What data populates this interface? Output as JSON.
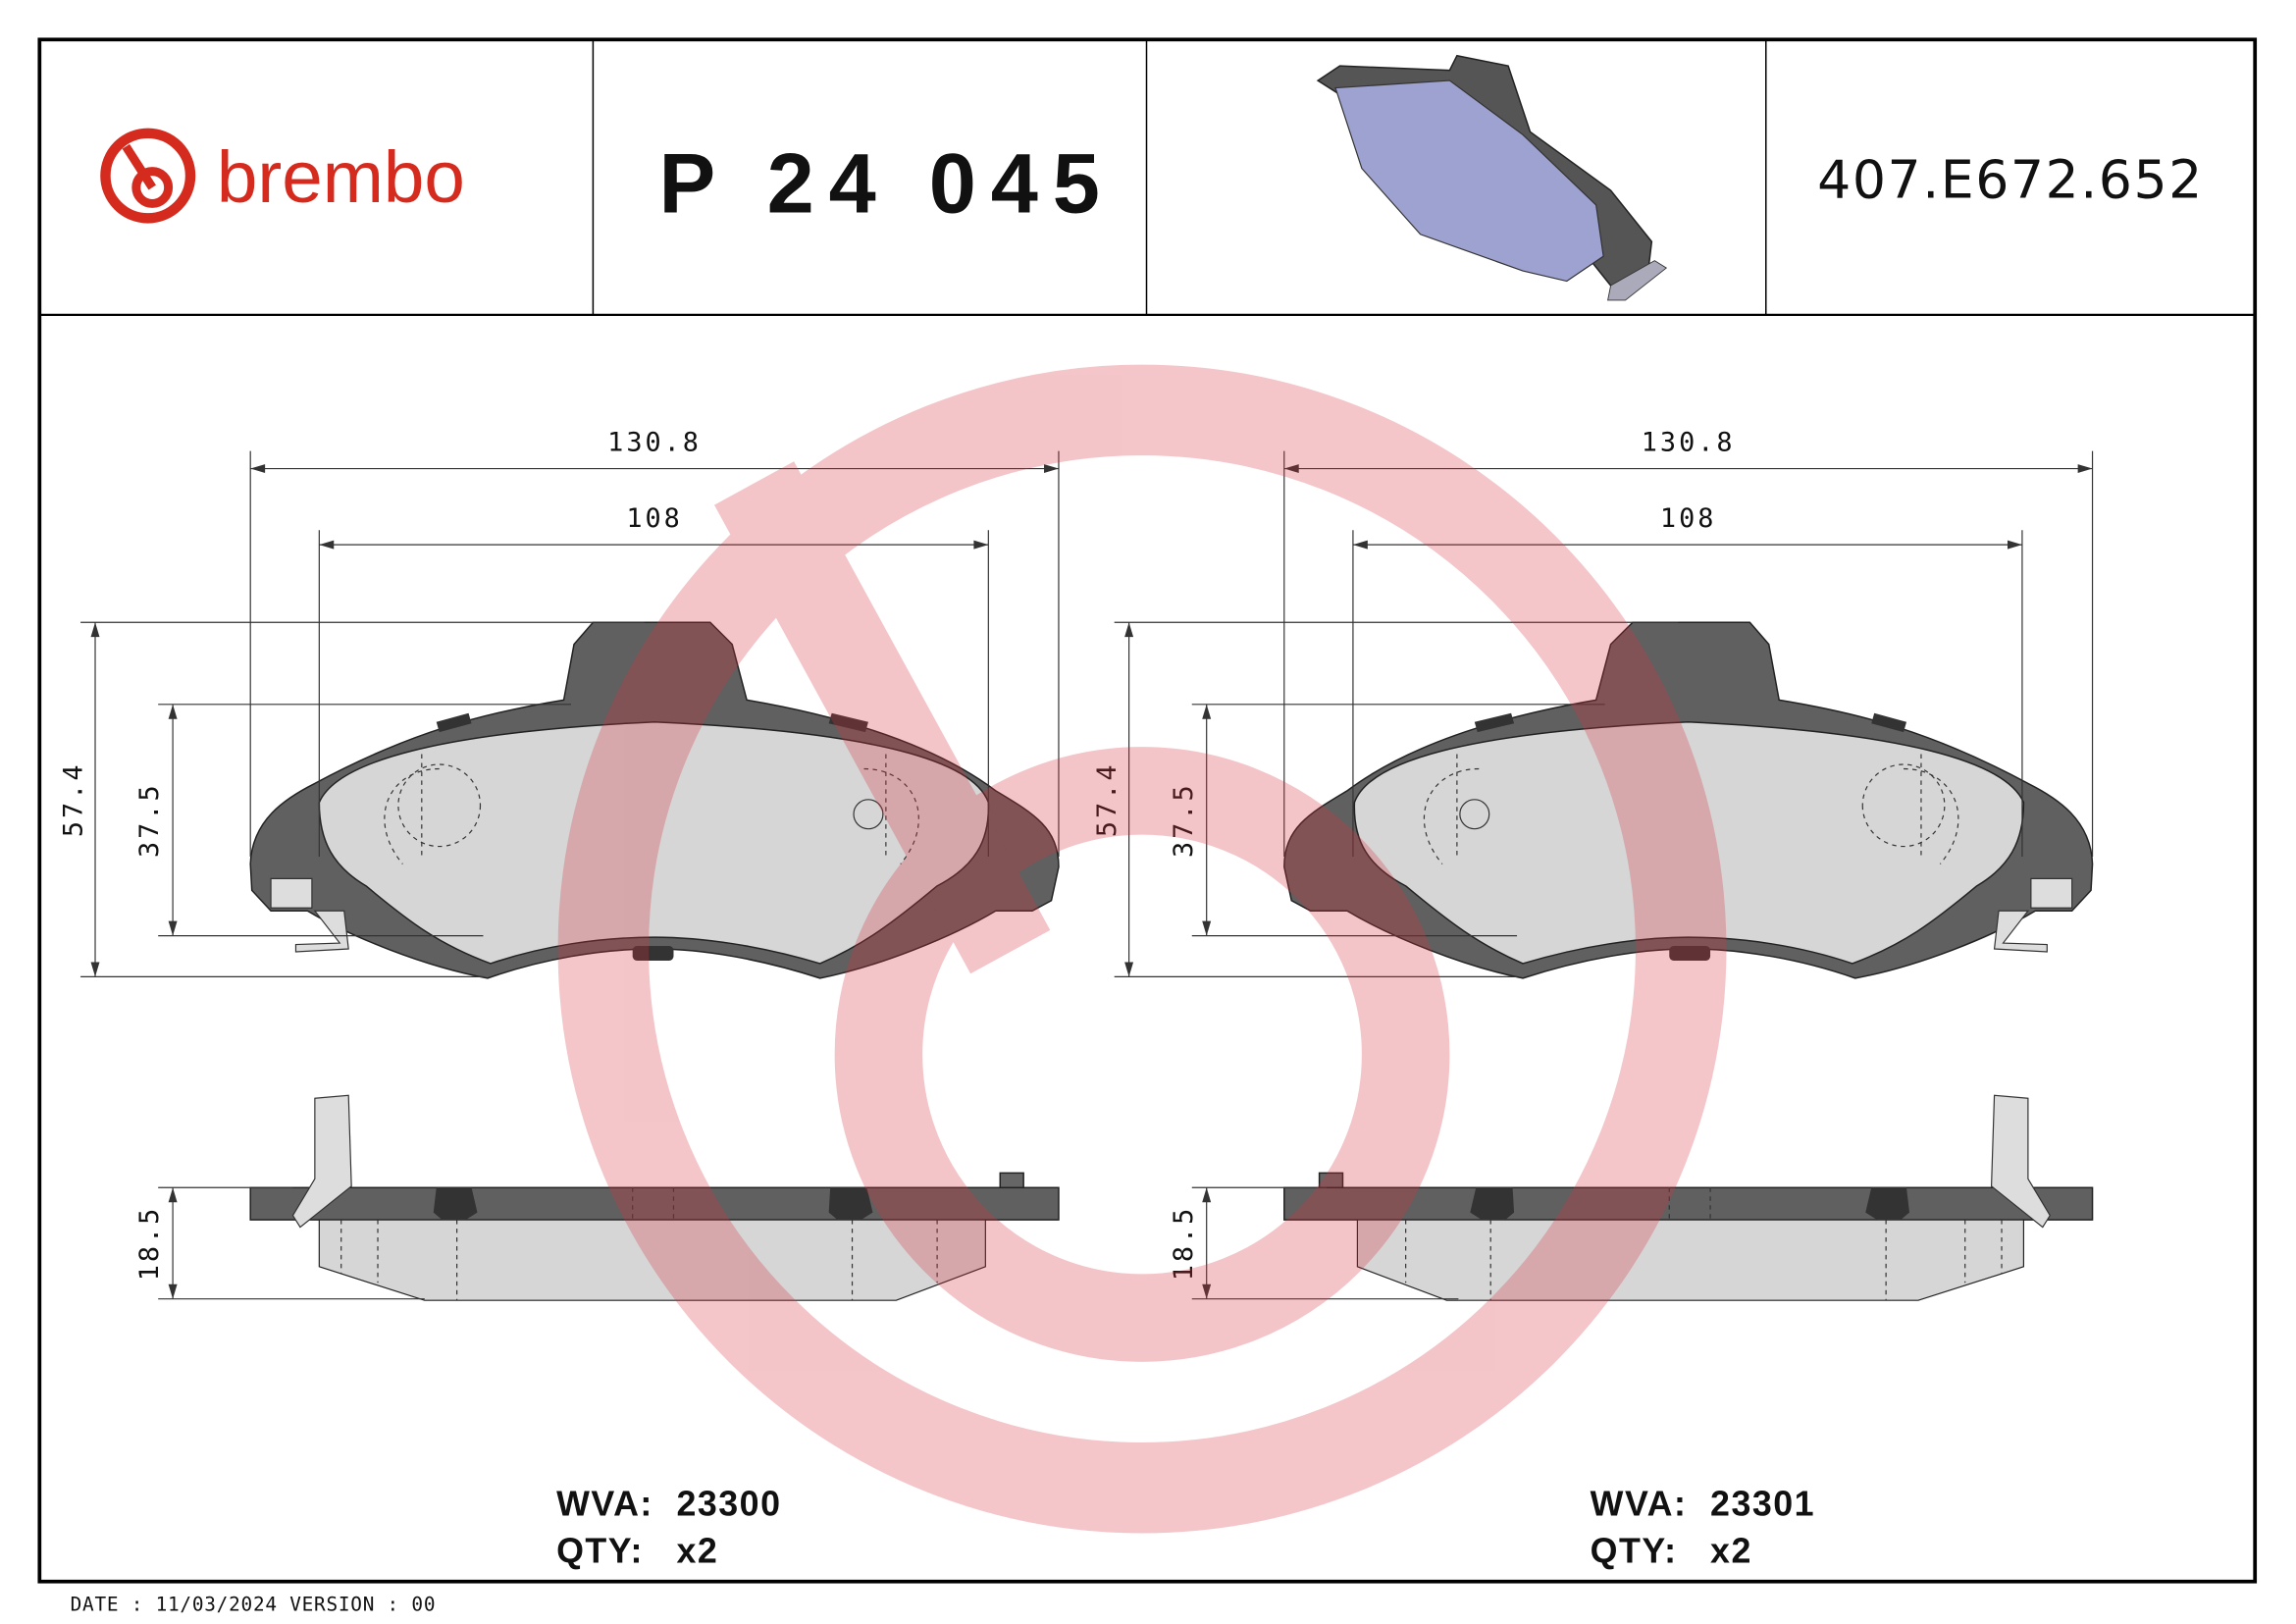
{
  "header": {
    "logo": "brembo",
    "part_number": "P 24 045",
    "reference": "407.E672.652"
  },
  "views": [
    {
      "width": "130.8",
      "inner_width": "108",
      "height": "57.4",
      "inner_height": "37.5",
      "thickness": "18.5",
      "wva_label": "WVA:",
      "wva": "23300",
      "qty_label": "QTY:",
      "qty": "x2"
    },
    {
      "width": "130.8",
      "inner_width": "108",
      "height": "57.4",
      "inner_height": "37.5",
      "thickness": "18.5",
      "wva_label": "WVA:",
      "wva": "23301",
      "qty_label": "QTY:",
      "qty": "x2"
    }
  ],
  "footer": "DATE : 11/03/2024 VERSION : 00"
}
